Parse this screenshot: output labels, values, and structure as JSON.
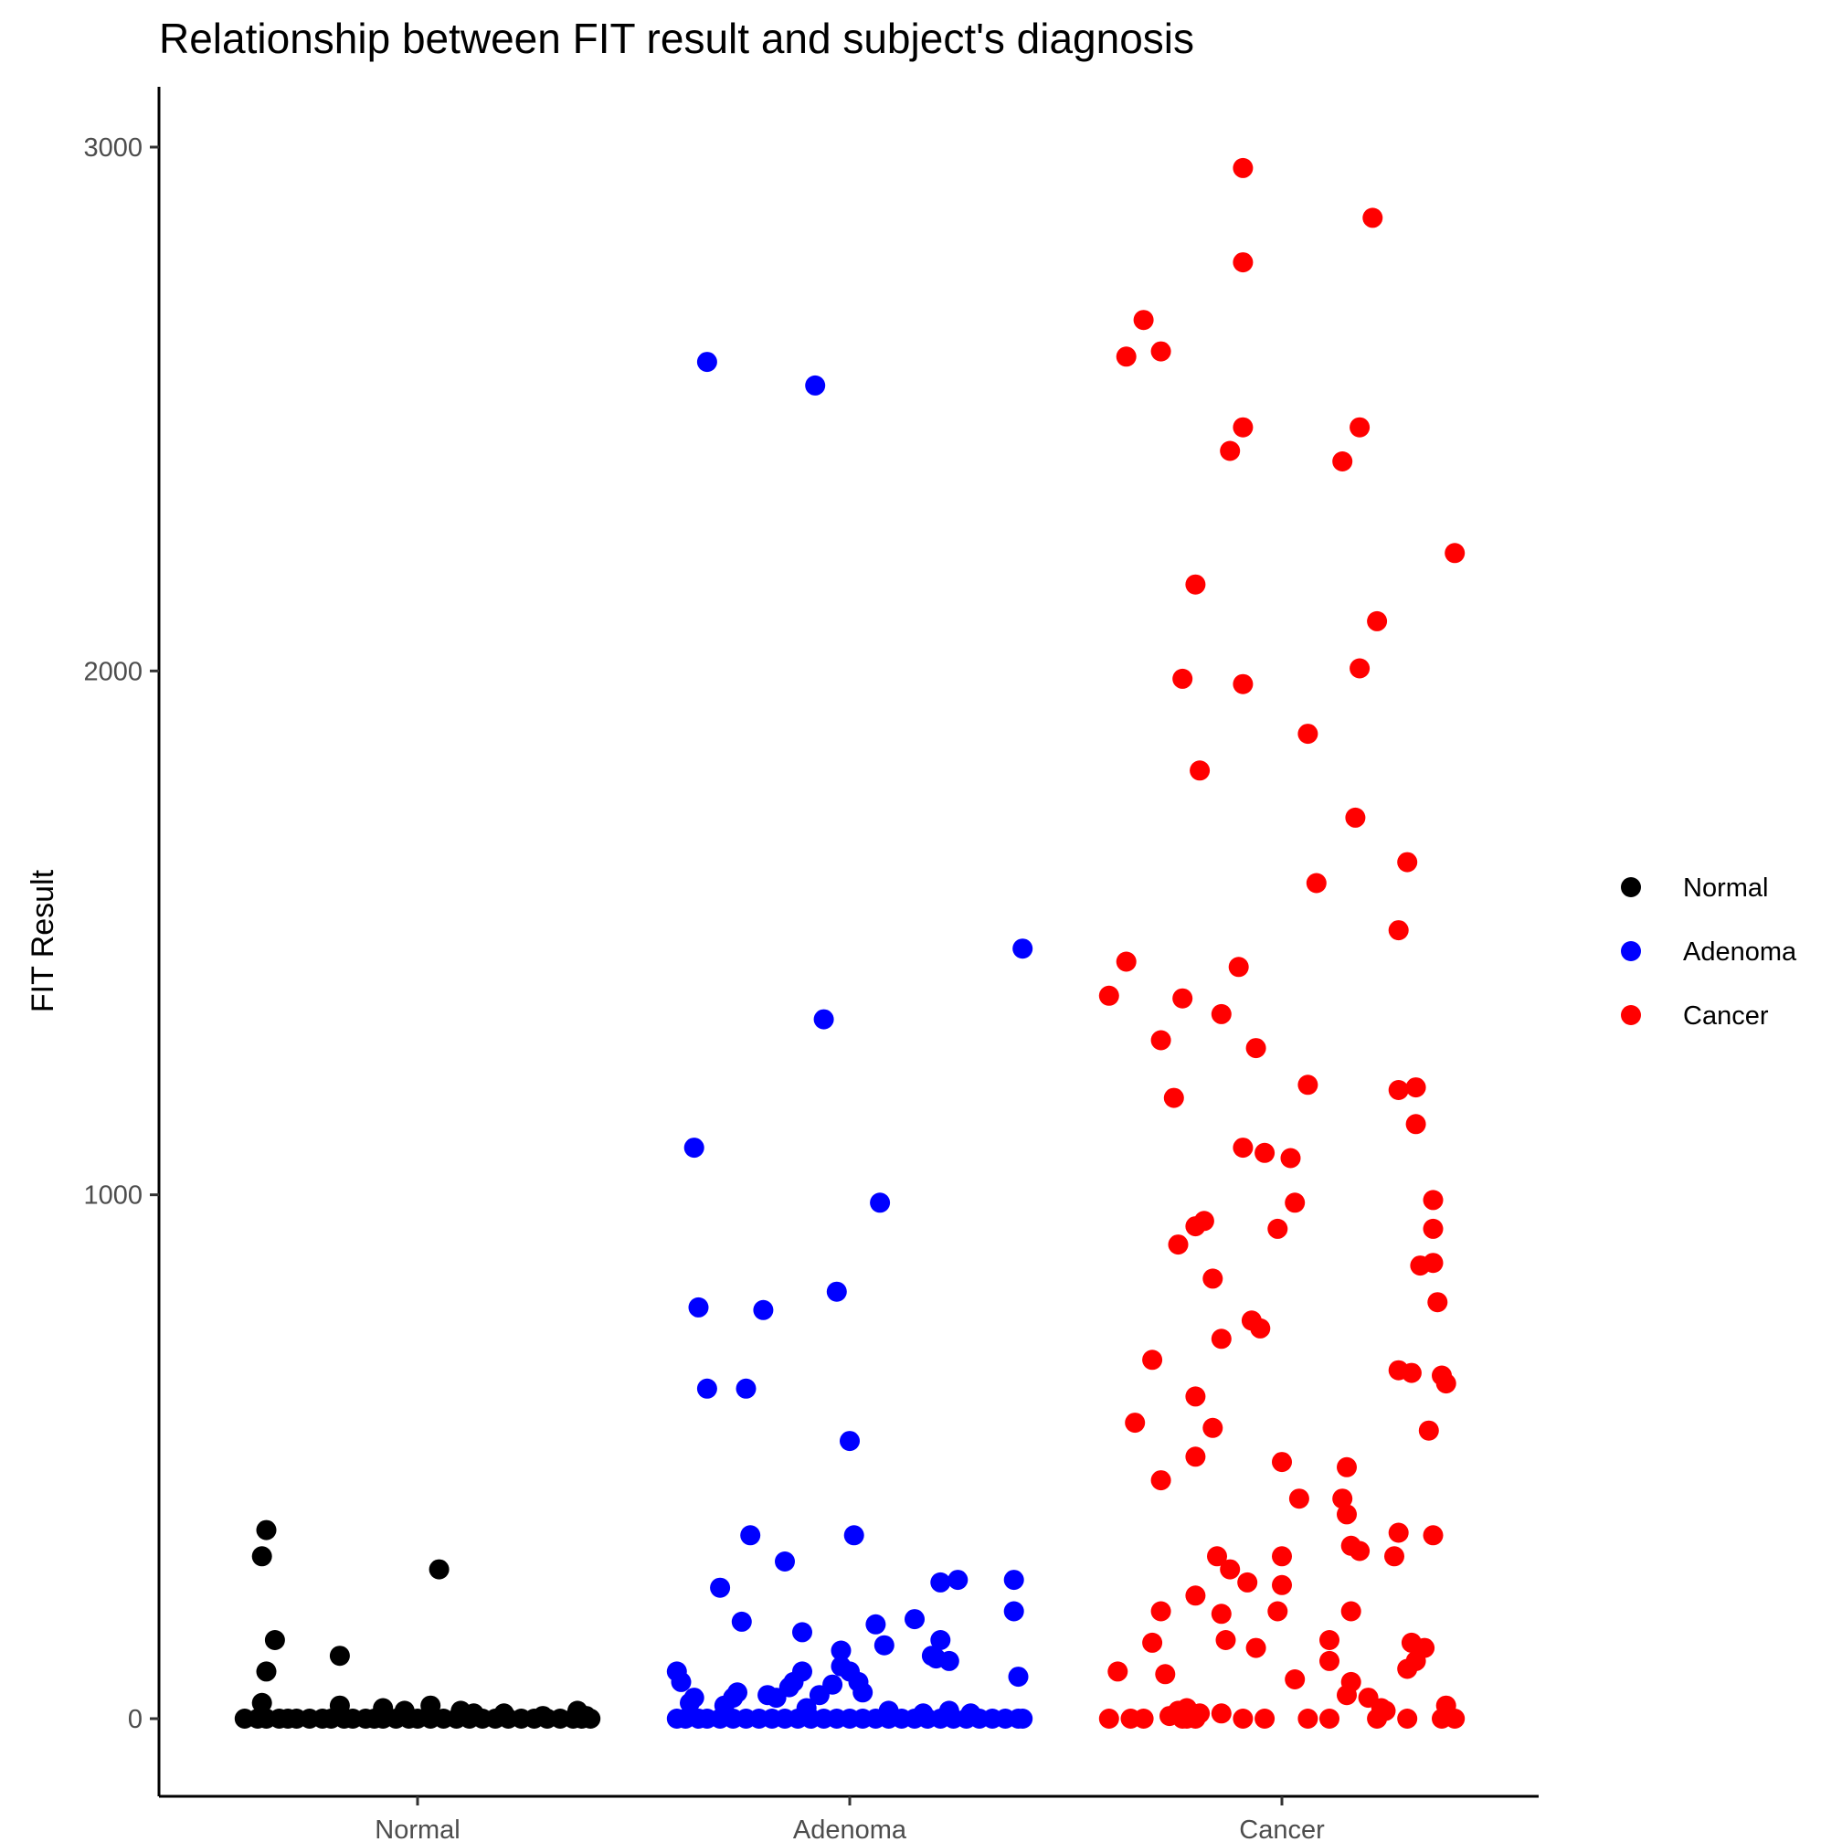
{
  "chart_data": {
    "type": "scatter",
    "title": "Relationship between FIT result and subject's diagnosis",
    "xlabel": "",
    "ylabel": "FIT Result",
    "categories": [
      "Normal",
      "Adenoma",
      "Cancer"
    ],
    "yticks": [
      0,
      1000,
      2000,
      3000
    ],
    "ytick_labels": [
      "0",
      "1000",
      "2000",
      "3000"
    ],
    "ylim": [
      -150,
      3120
    ],
    "grid": false,
    "legend": {
      "placement": "right",
      "entries": [
        {
          "label": "Normal",
          "color": "#000000"
        },
        {
          "label": "Adenoma",
          "color": "#0000ff"
        },
        {
          "label": "Cancer",
          "color": "#ff0000"
        }
      ]
    },
    "series": [
      {
        "name": "Normal",
        "color": "#000000",
        "points": [
          [
            -0.4,
            0
          ],
          [
            -0.37,
            0
          ],
          [
            -0.35,
            0
          ],
          [
            -0.32,
            0
          ],
          [
            -0.3,
            0
          ],
          [
            -0.28,
            0
          ],
          [
            -0.25,
            0
          ],
          [
            -0.22,
            0
          ],
          [
            -0.2,
            0
          ],
          [
            -0.17,
            0
          ],
          [
            -0.15,
            0
          ],
          [
            -0.12,
            0
          ],
          [
            -0.1,
            0
          ],
          [
            -0.08,
            0
          ],
          [
            -0.05,
            0
          ],
          [
            -0.02,
            0
          ],
          [
            0.0,
            0
          ],
          [
            0.03,
            0
          ],
          [
            0.06,
            0
          ],
          [
            0.09,
            0
          ],
          [
            0.12,
            0
          ],
          [
            0.15,
            0
          ],
          [
            0.18,
            0
          ],
          [
            0.21,
            0
          ],
          [
            0.24,
            0
          ],
          [
            0.27,
            0
          ],
          [
            0.3,
            0
          ],
          [
            0.33,
            0
          ],
          [
            0.36,
            0
          ],
          [
            0.38,
            0
          ],
          [
            0.4,
            0
          ],
          [
            -0.36,
            310
          ],
          [
            -0.35,
            360
          ],
          [
            -0.33,
            150
          ],
          [
            -0.35,
            90
          ],
          [
            -0.18,
            120
          ],
          [
            0.05,
            285
          ],
          [
            -0.36,
            30
          ],
          [
            -0.18,
            25
          ],
          [
            -0.08,
            20
          ],
          [
            -0.03,
            15
          ],
          [
            0.03,
            25
          ],
          [
            0.1,
            15
          ],
          [
            0.13,
            10
          ],
          [
            0.2,
            10
          ],
          [
            0.29,
            5
          ],
          [
            0.37,
            15
          ],
          [
            0.39,
            5
          ]
        ]
      },
      {
        "name": "Adenoma",
        "color": "#0000ff",
        "points": [
          [
            -0.33,
            2590
          ],
          [
            -0.08,
            2545
          ],
          [
            0.4,
            1470
          ],
          [
            -0.06,
            1335
          ],
          [
            -0.36,
            1090
          ],
          [
            0.07,
            985
          ],
          [
            -0.35,
            785
          ],
          [
            -0.2,
            780
          ],
          [
            -0.03,
            815
          ],
          [
            -0.33,
            630
          ],
          [
            -0.24,
            630
          ],
          [
            0.0,
            530
          ],
          [
            -0.23,
            350
          ],
          [
            0.01,
            350
          ],
          [
            -0.15,
            300
          ],
          [
            -0.3,
            250
          ],
          [
            0.21,
            260
          ],
          [
            0.25,
            265
          ],
          [
            0.38,
            265
          ],
          [
            -0.25,
            185
          ],
          [
            -0.11,
            165
          ],
          [
            0.06,
            180
          ],
          [
            0.15,
            190
          ],
          [
            0.38,
            205
          ],
          [
            -0.4,
            90
          ],
          [
            -0.39,
            70
          ],
          [
            0.08,
            140
          ],
          [
            -0.02,
            130
          ],
          [
            0.2,
            115
          ],
          [
            0.19,
            120
          ],
          [
            0.21,
            150
          ],
          [
            0.23,
            110
          ],
          [
            0.39,
            80
          ],
          [
            -0.27,
            40
          ],
          [
            -0.26,
            50
          ],
          [
            -0.17,
            40
          ],
          [
            -0.14,
            60
          ],
          [
            -0.13,
            70
          ],
          [
            -0.11,
            90
          ],
          [
            -0.07,
            45
          ],
          [
            -0.04,
            65
          ],
          [
            -0.02,
            100
          ],
          [
            0.0,
            90
          ],
          [
            0.02,
            70
          ],
          [
            0.03,
            50
          ],
          [
            -0.37,
            30
          ],
          [
            -0.36,
            40
          ],
          [
            -0.29,
            25
          ],
          [
            -0.19,
            45
          ],
          [
            -0.1,
            20
          ],
          [
            0.09,
            15
          ],
          [
            0.17,
            10
          ],
          [
            0.23,
            15
          ],
          [
            0.28,
            10
          ],
          [
            -0.4,
            0
          ],
          [
            -0.38,
            0
          ],
          [
            -0.35,
            0
          ],
          [
            -0.33,
            0
          ],
          [
            -0.3,
            0
          ],
          [
            -0.27,
            0
          ],
          [
            -0.24,
            0
          ],
          [
            -0.21,
            0
          ],
          [
            -0.18,
            0
          ],
          [
            -0.15,
            0
          ],
          [
            -0.12,
            0
          ],
          [
            -0.09,
            0
          ],
          [
            -0.06,
            0
          ],
          [
            -0.03,
            0
          ],
          [
            0.0,
            0
          ],
          [
            0.03,
            0
          ],
          [
            0.06,
            0
          ],
          [
            0.09,
            0
          ],
          [
            0.12,
            0
          ],
          [
            0.15,
            0
          ],
          [
            0.18,
            0
          ],
          [
            0.21,
            0
          ],
          [
            0.24,
            0
          ],
          [
            0.27,
            0
          ],
          [
            0.3,
            0
          ],
          [
            0.33,
            0
          ],
          [
            0.36,
            0
          ],
          [
            0.39,
            0
          ],
          [
            0.4,
            0
          ]
        ]
      },
      {
        "name": "Cancer",
        "color": "#ff0000",
        "points": [
          [
            -0.09,
            2960
          ],
          [
            0.21,
            2865
          ],
          [
            -0.09,
            2780
          ],
          [
            -0.32,
            2670
          ],
          [
            -0.28,
            2610
          ],
          [
            -0.36,
            2600
          ],
          [
            -0.09,
            2465
          ],
          [
            -0.12,
            2420
          ],
          [
            0.18,
            2465
          ],
          [
            0.14,
            2400
          ],
          [
            0.4,
            2225
          ],
          [
            -0.2,
            2165
          ],
          [
            0.22,
            2095
          ],
          [
            -0.23,
            1985
          ],
          [
            -0.09,
            1975
          ],
          [
            0.18,
            2005
          ],
          [
            0.06,
            1880
          ],
          [
            -0.19,
            1810
          ],
          [
            0.17,
            1720
          ],
          [
            0.29,
            1635
          ],
          [
            0.08,
            1595
          ],
          [
            0.27,
            1505
          ],
          [
            -0.36,
            1445
          ],
          [
            -0.1,
            1435
          ],
          [
            -0.4,
            1380
          ],
          [
            -0.23,
            1375
          ],
          [
            -0.14,
            1345
          ],
          [
            -0.28,
            1295
          ],
          [
            -0.06,
            1280
          ],
          [
            0.06,
            1210
          ],
          [
            0.27,
            1200
          ],
          [
            0.31,
            1205
          ],
          [
            -0.25,
            1185
          ],
          [
            0.31,
            1135
          ],
          [
            -0.09,
            1090
          ],
          [
            -0.04,
            1080
          ],
          [
            0.02,
            1070
          ],
          [
            0.03,
            985
          ],
          [
            0.35,
            990
          ],
          [
            -0.2,
            940
          ],
          [
            -0.18,
            950
          ],
          [
            -0.01,
            935
          ],
          [
            -0.24,
            905
          ],
          [
            0.35,
            935
          ],
          [
            0.32,
            865
          ],
          [
            0.35,
            870
          ],
          [
            -0.16,
            840
          ],
          [
            0.36,
            795
          ],
          [
            -0.07,
            760
          ],
          [
            -0.05,
            745
          ],
          [
            -0.14,
            725
          ],
          [
            -0.3,
            685
          ],
          [
            0.27,
            665
          ],
          [
            0.3,
            660
          ],
          [
            0.37,
            655
          ],
          [
            0.38,
            640
          ],
          [
            -0.2,
            615
          ],
          [
            -0.34,
            565
          ],
          [
            -0.16,
            555
          ],
          [
            0.34,
            550
          ],
          [
            0.0,
            490
          ],
          [
            0.15,
            480
          ],
          [
            -0.28,
            455
          ],
          [
            -0.2,
            500
          ],
          [
            0.04,
            420
          ],
          [
            0.14,
            420
          ],
          [
            0.15,
            390
          ],
          [
            0.27,
            355
          ],
          [
            0.35,
            350
          ],
          [
            0.16,
            330
          ],
          [
            0.18,
            320
          ],
          [
            -0.15,
            310
          ],
          [
            0.0,
            310
          ],
          [
            0.26,
            310
          ],
          [
            -0.12,
            285
          ],
          [
            -0.08,
            260
          ],
          [
            -0.2,
            235
          ],
          [
            0.0,
            255
          ],
          [
            -0.28,
            205
          ],
          [
            -0.14,
            200
          ],
          [
            -0.01,
            205
          ],
          [
            0.16,
            205
          ],
          [
            -0.3,
            145
          ],
          [
            -0.13,
            150
          ],
          [
            -0.06,
            135
          ],
          [
            0.11,
            150
          ],
          [
            0.3,
            145
          ],
          [
            0.33,
            135
          ],
          [
            0.11,
            110
          ],
          [
            0.29,
            95
          ],
          [
            0.31,
            110
          ],
          [
            -0.38,
            90
          ],
          [
            -0.27,
            85
          ],
          [
            0.03,
            75
          ],
          [
            0.16,
            70
          ],
          [
            0.15,
            45
          ],
          [
            0.2,
            40
          ],
          [
            0.23,
            20
          ],
          [
            0.24,
            15
          ],
          [
            0.38,
            25
          ],
          [
            -0.22,
            20
          ],
          [
            -0.24,
            15
          ],
          [
            -0.14,
            10
          ],
          [
            -0.19,
            10
          ],
          [
            -0.26,
            5
          ],
          [
            -0.4,
            0
          ],
          [
            -0.35,
            0
          ],
          [
            -0.32,
            0
          ],
          [
            -0.23,
            0
          ],
          [
            -0.22,
            0
          ],
          [
            -0.2,
            0
          ],
          [
            -0.09,
            0
          ],
          [
            -0.04,
            0
          ],
          [
            0.06,
            0
          ],
          [
            0.11,
            0
          ],
          [
            0.22,
            0
          ],
          [
            0.29,
            0
          ],
          [
            0.37,
            0
          ],
          [
            0.4,
            0
          ]
        ]
      }
    ]
  }
}
